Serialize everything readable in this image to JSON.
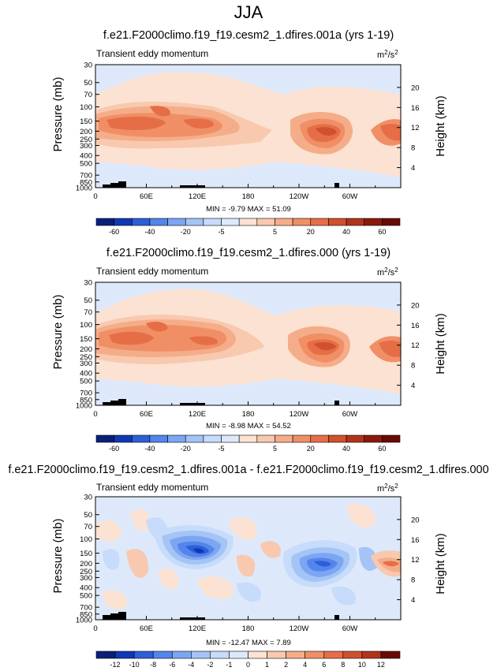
{
  "page": {
    "title": "JJA"
  },
  "chart_data": [
    {
      "type": "heatmap",
      "title": "f.e21.F2000climo.f19_f19.cesm2_1.dfires.001a (yrs 1-19)",
      "subtitle_left": "Transient eddy momentum",
      "units": "m²/s²",
      "units_base": "m",
      "units_mid": "/s",
      "units_exp": "2",
      "ylabel": "Pressure (mb)",
      "ylabel_right": "Height (km)",
      "xticks": [
        "0",
        "60E",
        "120E",
        "180",
        "120W",
        "60W"
      ],
      "yticks": [
        "30",
        "50",
        "70",
        "100",
        "150",
        "200",
        "250",
        "300",
        "400",
        "500",
        "700",
        "850",
        "1000"
      ],
      "yticks_right": [
        "20",
        "16",
        "12",
        "8",
        "4"
      ],
      "stats": "MIN = -9.79  MAX = 51.09",
      "colorbar_labels": [
        "-60",
        "-40",
        "-20",
        "-5",
        "5",
        "20",
        "40",
        "60"
      ],
      "colorbar_colors": [
        "#0a1f7a",
        "#1038b4",
        "#2d5fd9",
        "#5485ec",
        "#7ca6f2",
        "#a4c4f6",
        "#c6dcfa",
        "#dde9fb",
        "#fbe2d2",
        "#f8c9ae",
        "#f5ad89",
        "#f08f66",
        "#e66e47",
        "#d1502f",
        "#b2331c",
        "#8a1a0c",
        "#6a0a05"
      ],
      "ylim": [
        1000,
        30
      ],
      "xlim": [
        0,
        360
      ],
      "features": [
        {
          "lon": 30,
          "p": 160,
          "v": 45
        },
        {
          "lon": 70,
          "p": 140,
          "v": 40
        },
        {
          "lon": 125,
          "p": 160,
          "v": 38
        },
        {
          "lon": 245,
          "p": 190,
          "v": 51
        },
        {
          "lon": 355,
          "p": 200,
          "v": 40
        }
      ]
    },
    {
      "type": "heatmap",
      "title": "f.e21.F2000climo.f19_f19.cesm2_1.dfires.000 (yrs 1-19)",
      "subtitle_left": "Transient eddy momentum",
      "units": "m²/s²",
      "units_base": "m",
      "units_mid": "/s",
      "units_exp": "2",
      "ylabel": "Pressure (mb)",
      "ylabel_right": "Height (km)",
      "xticks": [
        "0",
        "60E",
        "120E",
        "180",
        "120W",
        "60W"
      ],
      "yticks": [
        "30",
        "50",
        "70",
        "100",
        "150",
        "200",
        "250",
        "300",
        "400",
        "500",
        "700",
        "850",
        "1000"
      ],
      "yticks_right": [
        "20",
        "16",
        "12",
        "8",
        "4"
      ],
      "stats": "MIN = -8.98  MAX = 54.52",
      "colorbar_labels": [
        "-60",
        "-40",
        "-20",
        "-5",
        "5",
        "20",
        "40",
        "60"
      ],
      "colorbar_colors": [
        "#0a1f7a",
        "#1038b4",
        "#2d5fd9",
        "#5485ec",
        "#7ca6f2",
        "#a4c4f6",
        "#c6dcfa",
        "#dde9fb",
        "#fbe2d2",
        "#f8c9ae",
        "#f5ad89",
        "#f08f66",
        "#e66e47",
        "#d1502f",
        "#b2331c",
        "#8a1a0c",
        "#6a0a05"
      ],
      "ylim": [
        1000,
        30
      ],
      "xlim": [
        0,
        360
      ],
      "features": [
        {
          "lon": 30,
          "p": 160,
          "v": 45
        },
        {
          "lon": 85,
          "p": 140,
          "v": 42
        },
        {
          "lon": 125,
          "p": 160,
          "v": 38
        },
        {
          "lon": 250,
          "p": 200,
          "v": 54
        },
        {
          "lon": 355,
          "p": 200,
          "v": 40
        }
      ]
    },
    {
      "type": "heatmap",
      "title": "f.e21.F2000climo.f19_f19.cesm2_1.dfires.001a - f.e21.F2000climo.f19_f19.cesm2_1.dfires.000",
      "subtitle_left": "Transient eddy momentum",
      "units": "m²/s²",
      "units_base": "m",
      "units_mid": "/s",
      "units_exp": "2",
      "ylabel": "Pressure (mb)",
      "ylabel_right": "Height (km)",
      "xticks": [
        "0",
        "60E",
        "120E",
        "180",
        "120W",
        "60W"
      ],
      "yticks": [
        "30",
        "50",
        "70",
        "100",
        "150",
        "200",
        "250",
        "300",
        "400",
        "500",
        "700",
        "850",
        "1000"
      ],
      "yticks_right": [
        "20",
        "16",
        "12",
        "8",
        "4"
      ],
      "stats": "MIN = -12.47  MAX =  7.89",
      "colorbar_labels": [
        "-12",
        "-10",
        "-8",
        "-6",
        "-4",
        "-2",
        "-1",
        "0",
        "1",
        "2",
        "4",
        "6",
        "8",
        "10",
        "12"
      ],
      "colorbar_colors": [
        "#0a1f7a",
        "#1038b4",
        "#2d5fd9",
        "#5485ec",
        "#7ca6f2",
        "#a4c4f6",
        "#c6dcfa",
        "#dde9fb",
        "#fbe2d2",
        "#f8c9ae",
        "#f5ad89",
        "#f08f66",
        "#e66e47",
        "#d1502f",
        "#b2331c",
        "#6a0a05"
      ],
      "ylim": [
        1000,
        30
      ],
      "xlim": [
        0,
        360
      ],
      "features": [
        {
          "lon": 110,
          "p": 150,
          "v": -12.47
        },
        {
          "lon": 265,
          "p": 200,
          "v": -8
        },
        {
          "lon": 345,
          "p": 200,
          "v": 7.89
        },
        {
          "lon": 200,
          "p": 150,
          "v": 3
        }
      ]
    }
  ]
}
